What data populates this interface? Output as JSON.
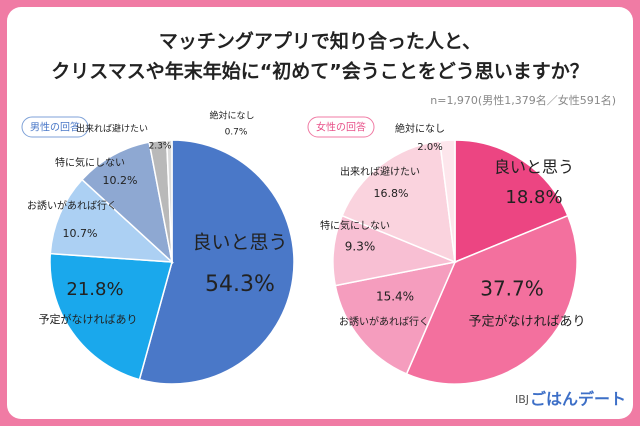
{
  "title": [
    "マッチングアプリで知り合った人と、",
    "クリスマスや年末年始に“初めて”会うことをどう思いますか？"
  ],
  "subtitle": "n=1,970(男性1,379名／女性591名)",
  "brand": {
    "company": "IBJ",
    "service": "ごはんデート"
  },
  "chart_data": [
    {
      "type": "pie",
      "title": "男性の回答",
      "categories": [
        "良いと思う",
        "予定がなければあり",
        "お誘いがあれば行く",
        "特に気にしない",
        "出来れば避けたい",
        "絶対になし"
      ],
      "values": [
        54.3,
        21.8,
        10.7,
        10.2,
        2.3,
        0.7
      ],
      "value_labels": [
        "54.3%",
        "21.8%",
        "10.7%",
        "10.2%",
        "2.3%",
        "0.7%"
      ],
      "colors": [
        "#4a78c8",
        "#1aa8ec",
        "#acd0f3",
        "#8ea8d2",
        "#b9b9b9",
        "#dcdcdc"
      ]
    },
    {
      "type": "pie",
      "title": "女性の回答",
      "categories": [
        "良いと思う",
        "予定がなければあり",
        "お誘いがあれば行く",
        "特に気にしない",
        "出来れば避けたい",
        "絶対になし"
      ],
      "values": [
        18.8,
        37.7,
        15.4,
        9.3,
        16.8,
        2
      ],
      "value_labels": [
        "18.8%",
        "37.7%",
        "15.4%",
        "9.3%",
        "16.8%",
        "2.0%"
      ],
      "colors": [
        "#ec4582",
        "#f3709e",
        "#f59dbe",
        "#f8bfd3",
        "#fad3de",
        "#fde6ec"
      ]
    }
  ]
}
